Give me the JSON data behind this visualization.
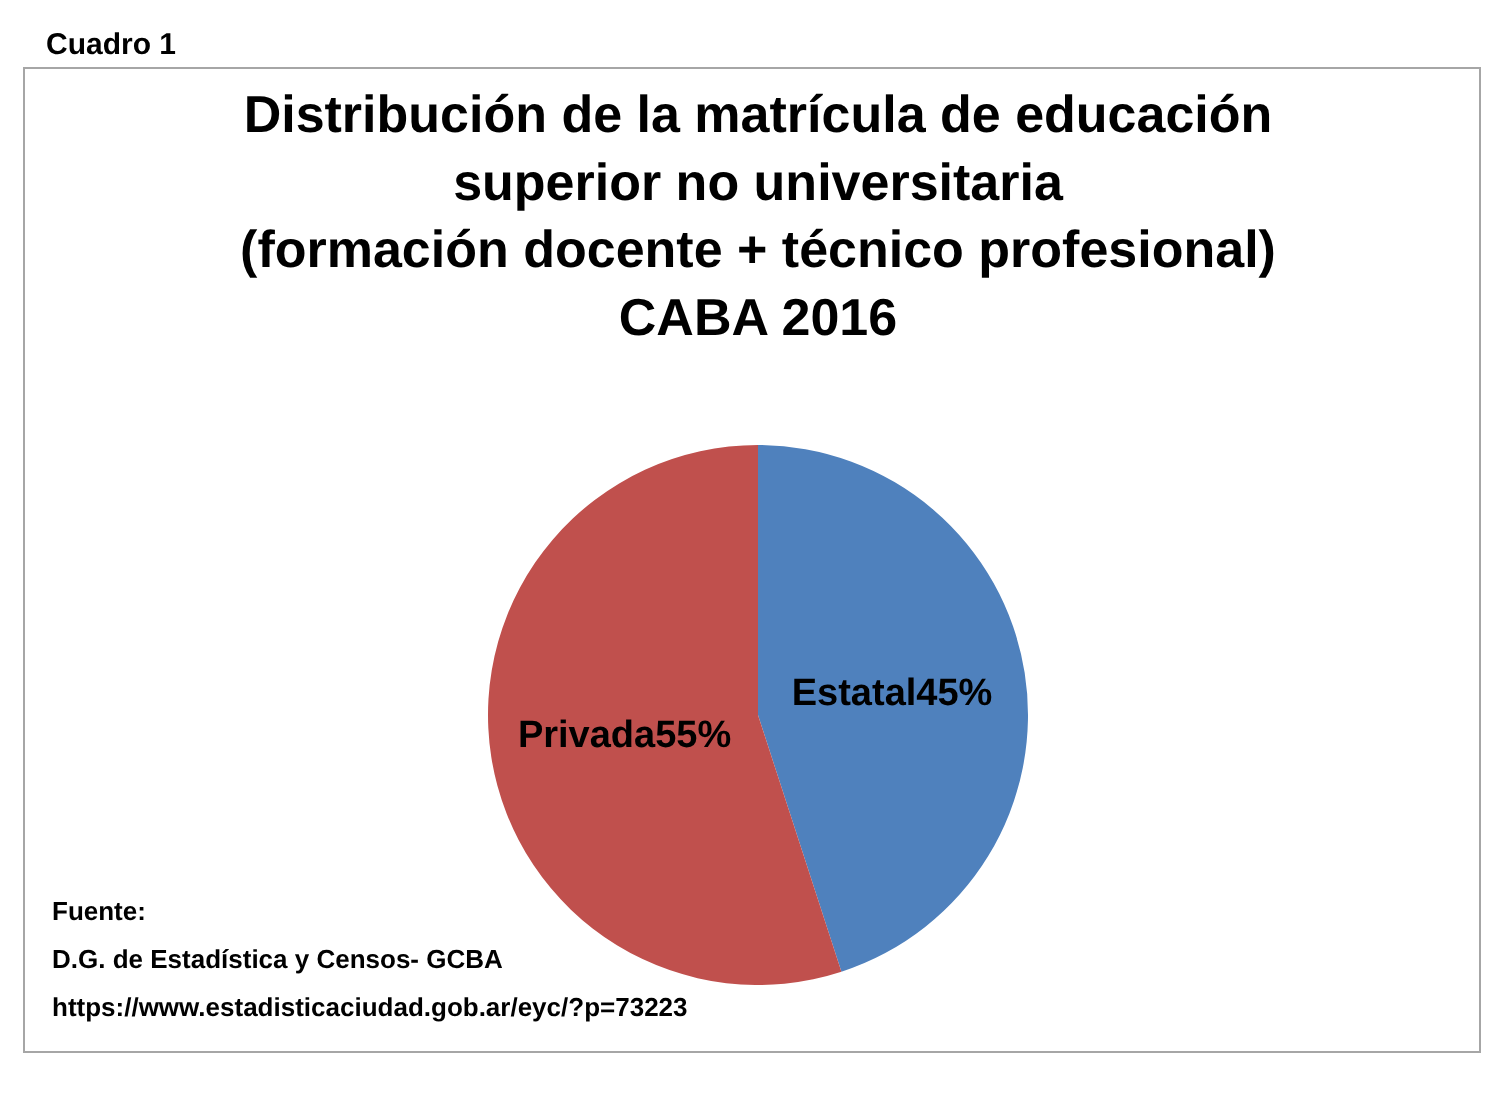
{
  "chart_data": {
    "type": "pie",
    "title": "Distribución de la matrícula de educación\nsuperior no universitaria\n(formación docente + técnico profesional)\nCABA 2016",
    "categories": [
      "Estatal",
      "Privada"
    ],
    "values": [
      45,
      55
    ],
    "colors": [
      "#4f81bd",
      "#c0504d"
    ],
    "value_labels": [
      "45%",
      "55%"
    ],
    "annotations": [
      "Cuadro 1",
      "Fuente:",
      "D.G. de Estadística y Censos- GCBA",
      "https://www.estadisticaciudad.gob.ar/eyc/?p=73223"
    ]
  }
}
